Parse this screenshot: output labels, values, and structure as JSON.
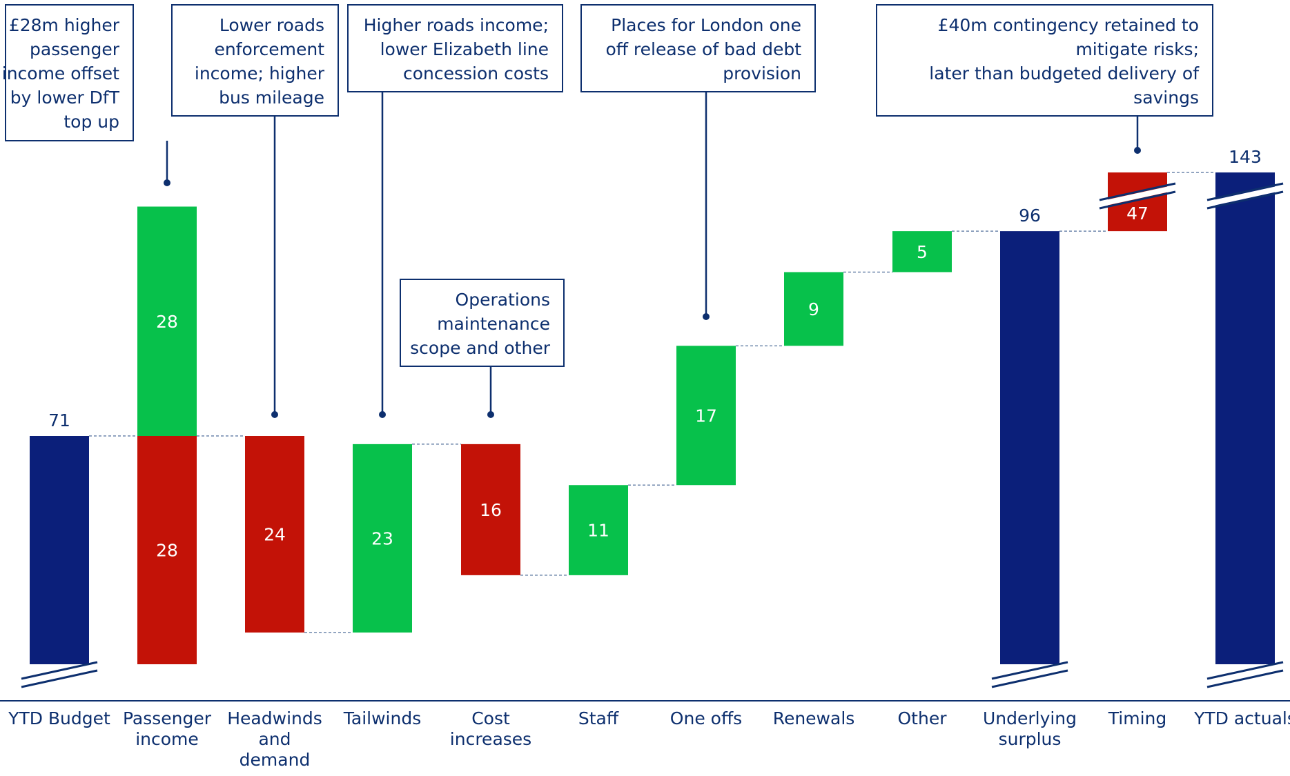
{
  "chart_data": {
    "type": "waterfall",
    "categories": [
      [
        "YTD Budget"
      ],
      [
        "Passenger",
        "income"
      ],
      [
        "Headwinds",
        "and",
        "demand"
      ],
      [
        "Tailwinds"
      ],
      [
        "Cost",
        "increases"
      ],
      [
        "Staff"
      ],
      [
        "One offs"
      ],
      [
        "Renewals"
      ],
      [
        "Other"
      ],
      [
        "Underlying",
        "surplus"
      ],
      [
        "Timing"
      ],
      [
        "YTD actuals"
      ]
    ],
    "bars": [
      {
        "kind": "total",
        "from": 0,
        "to": 71,
        "label": "71",
        "broken": true
      },
      {
        "kind": "stack",
        "from": 71,
        "to": 71,
        "up": 28,
        "down": 28,
        "label_up": "28",
        "label_down": "28"
      },
      {
        "kind": "decrease",
        "from": 71,
        "to": 47,
        "label": "24"
      },
      {
        "kind": "increase",
        "from": 47,
        "to": 70,
        "label": "23"
      },
      {
        "kind": "decrease",
        "from": 70,
        "to": 54,
        "label": "16"
      },
      {
        "kind": "increase",
        "from": 54,
        "to": 65,
        "label": "11"
      },
      {
        "kind": "increase",
        "from": 65,
        "to": 82,
        "label": "17"
      },
      {
        "kind": "increase",
        "from": 82,
        "to": 91,
        "label": "9"
      },
      {
        "kind": "increase",
        "from": 91,
        "to": 96,
        "label": "5"
      },
      {
        "kind": "total",
        "from": 0,
        "to": 96,
        "label": "96",
        "broken": true
      },
      {
        "kind": "increase-broken",
        "from": 96,
        "to": 143,
        "label": "47",
        "color": "red"
      },
      {
        "kind": "total",
        "from": 0,
        "to": 143,
        "label": "143",
        "broken": true
      }
    ],
    "colors": {
      "total": "#0b1f7a",
      "increase": "#07c14b",
      "decrease": "#c31207",
      "text": "#0d2f6e"
    },
    "callouts": [
      {
        "bar": 1,
        "lines": [
          "£28m higher",
          "passenger",
          "income offset",
          "by lower DfT",
          "top up"
        ]
      },
      {
        "bar": 2,
        "lines": [
          "Lower roads",
          "enforcement",
          "income; higher",
          "bus mileage"
        ]
      },
      {
        "bar": 3,
        "lines": [
          "Higher roads income;",
          "lower Elizabeth line",
          "concession costs"
        ]
      },
      {
        "bar": 4,
        "lines": [
          "Operations",
          "maintenance",
          "scope and other"
        ]
      },
      {
        "bar": 6,
        "lines": [
          "Places for London one",
          "off release of bad debt",
          "provision"
        ]
      },
      {
        "bar": 10,
        "lines": [
          "£40m contingency retained to",
          "mitigate risks;",
          "later than budgeted delivery of",
          "savings"
        ]
      }
    ]
  }
}
